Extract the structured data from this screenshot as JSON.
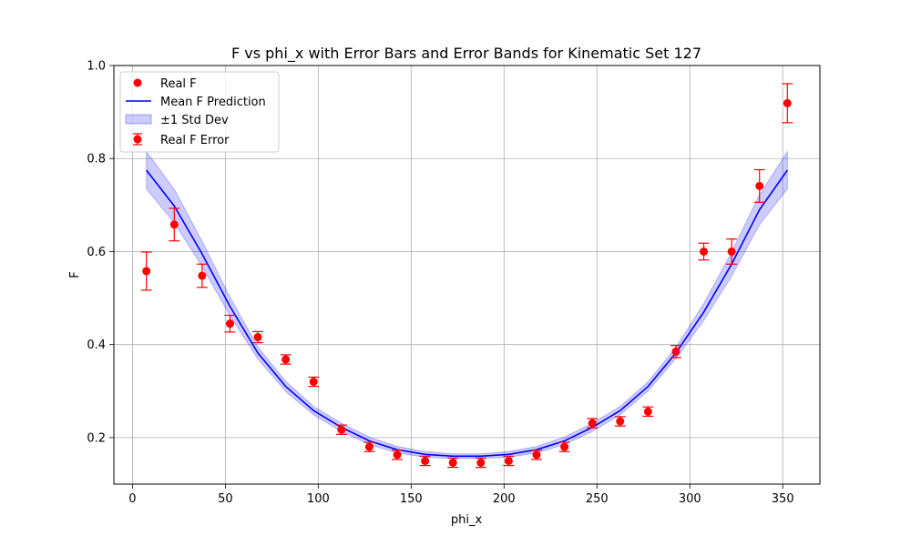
{
  "chart_data": {
    "type": "scatter",
    "title": "F vs phi_x with Error Bars and Error Bands for Kinematic Set 127",
    "xlabel": "phi_x",
    "ylabel": "F",
    "xlim": [
      -10,
      370
    ],
    "ylim": [
      0.1,
      1.0
    ],
    "xticks": [
      0,
      50,
      100,
      150,
      200,
      250,
      300,
      350
    ],
    "yticks": [
      0.2,
      0.4,
      0.6,
      0.8,
      1.0
    ],
    "grid": true,
    "legend_position": "top-left",
    "colors": {
      "real": "#ff0000",
      "mean": "#0000ff",
      "band": "#0000ff"
    },
    "legend": [
      {
        "label": "Real F",
        "kind": "marker"
      },
      {
        "label": "Mean F Prediction",
        "kind": "line"
      },
      {
        "label": "±1 Std Dev",
        "kind": "band"
      },
      {
        "label": "Real F Error",
        "kind": "errorbar"
      }
    ],
    "x": [
      7.5,
      22.5,
      37.5,
      52.5,
      67.5,
      82.5,
      97.5,
      112.5,
      127.5,
      142.5,
      157.5,
      172.5,
      187.5,
      202.5,
      217.5,
      232.5,
      247.5,
      262.5,
      277.5,
      292.5,
      307.5,
      322.5,
      337.5,
      352.5
    ],
    "series": [
      {
        "name": "Real F",
        "values": [
          0.558,
          0.658,
          0.548,
          0.445,
          0.416,
          0.368,
          0.32,
          0.217,
          0.18,
          0.163,
          0.15,
          0.146,
          0.146,
          0.15,
          0.163,
          0.18,
          0.231,
          0.235,
          0.256,
          0.385,
          0.6,
          0.6,
          0.741,
          0.919
        ],
        "errors": [
          0.041,
          0.035,
          0.025,
          0.018,
          0.012,
          0.01,
          0.01,
          0.01,
          0.01,
          0.01,
          0.01,
          0.01,
          0.01,
          0.01,
          0.01,
          0.01,
          0.01,
          0.01,
          0.01,
          0.013,
          0.018,
          0.027,
          0.035,
          0.042
        ]
      },
      {
        "name": "Mean F Prediction",
        "values": [
          0.775,
          0.698,
          0.595,
          0.482,
          0.382,
          0.31,
          0.258,
          0.222,
          0.193,
          0.174,
          0.164,
          0.16,
          0.16,
          0.164,
          0.174,
          0.193,
          0.222,
          0.258,
          0.31,
          0.382,
          0.47,
          0.573,
          0.69,
          0.775
        ],
        "std": [
          0.04,
          0.036,
          0.027,
          0.02,
          0.013,
          0.011,
          0.009,
          0.009,
          0.008,
          0.007,
          0.006,
          0.005,
          0.005,
          0.006,
          0.007,
          0.008,
          0.009,
          0.009,
          0.01,
          0.012,
          0.018,
          0.026,
          0.032,
          0.04
        ]
      }
    ]
  }
}
